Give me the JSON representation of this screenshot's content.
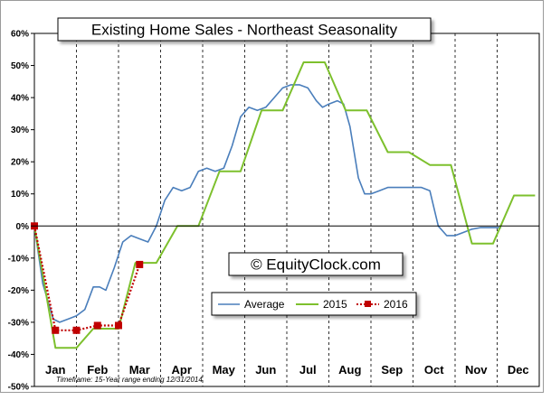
{
  "chart_data": {
    "type": "line",
    "title": "Existing Home Sales - Northeast Seasonality",
    "watermark": "© EquityClock.com",
    "footnote": "Timeframe: 15-Year range ending 12/31/2014",
    "months": [
      "Jan",
      "Feb",
      "Mar",
      "Apr",
      "May",
      "Jun",
      "Jul",
      "Aug",
      "Sep",
      "Oct",
      "Nov",
      "Dec"
    ],
    "ylim": [
      -50,
      60
    ],
    "yticks": [
      -50,
      -40,
      -30,
      -20,
      -10,
      0,
      10,
      20,
      30,
      40,
      50,
      60
    ],
    "ytick_labels": [
      "-50%",
      "-40%",
      "-30%",
      "-20%",
      "-10%",
      "0%",
      "10%",
      "20%",
      "30%",
      "40%",
      "50%",
      "60%"
    ],
    "grid": "vertical dashed month separators",
    "legend_position": "center-bottom",
    "series": [
      {
        "name": "Average",
        "color": "#4a7ebb",
        "points": [
          [
            0,
            0
          ],
          [
            0.2,
            -18
          ],
          [
            0.45,
            -29
          ],
          [
            0.6,
            -30
          ],
          [
            0.8,
            -29
          ],
          [
            1.0,
            -28
          ],
          [
            1.2,
            -26
          ],
          [
            1.4,
            -19
          ],
          [
            1.55,
            -19
          ],
          [
            1.7,
            -20
          ],
          [
            1.9,
            -13
          ],
          [
            2.1,
            -5
          ],
          [
            2.3,
            -3
          ],
          [
            2.5,
            -4
          ],
          [
            2.7,
            -5
          ],
          [
            2.9,
            0
          ],
          [
            3.1,
            8
          ],
          [
            3.3,
            12
          ],
          [
            3.5,
            11
          ],
          [
            3.7,
            12
          ],
          [
            3.9,
            17
          ],
          [
            4.1,
            18
          ],
          [
            4.3,
            17
          ],
          [
            4.5,
            18
          ],
          [
            4.7,
            25
          ],
          [
            4.9,
            34
          ],
          [
            5.1,
            37
          ],
          [
            5.3,
            36
          ],
          [
            5.5,
            37
          ],
          [
            5.7,
            40
          ],
          [
            5.9,
            43
          ],
          [
            6.1,
            44
          ],
          [
            6.3,
            44
          ],
          [
            6.5,
            43
          ],
          [
            6.7,
            39
          ],
          [
            6.85,
            37
          ],
          [
            7.0,
            38
          ],
          [
            7.2,
            39
          ],
          [
            7.35,
            38
          ],
          [
            7.5,
            31
          ],
          [
            7.7,
            15
          ],
          [
            7.85,
            10
          ],
          [
            8.0,
            10
          ],
          [
            8.2,
            11
          ],
          [
            8.4,
            12
          ],
          [
            8.7,
            12
          ],
          [
            9.0,
            12
          ],
          [
            9.2,
            12
          ],
          [
            9.4,
            11
          ],
          [
            9.6,
            0
          ],
          [
            9.8,
            -3
          ],
          [
            10.0,
            -3
          ],
          [
            10.2,
            -2
          ],
          [
            10.4,
            -1
          ],
          [
            10.6,
            -0.5
          ],
          [
            10.9,
            -0.5
          ],
          [
            11.1,
            -0.5
          ]
        ]
      },
      {
        "name": "2015",
        "color": "#7dc02d",
        "points": [
          [
            0,
            0
          ],
          [
            0.5,
            -38
          ],
          [
            1.0,
            -38
          ],
          [
            1.4,
            -32
          ],
          [
            2.0,
            -32
          ],
          [
            2.4,
            -11.5
          ],
          [
            2.9,
            -11.5
          ],
          [
            3.4,
            0
          ],
          [
            3.9,
            0
          ],
          [
            4.4,
            17
          ],
          [
            4.9,
            17
          ],
          [
            5.4,
            36
          ],
          [
            5.9,
            36
          ],
          [
            6.4,
            51
          ],
          [
            6.9,
            51
          ],
          [
            7.4,
            36
          ],
          [
            7.9,
            36
          ],
          [
            8.4,
            23
          ],
          [
            8.9,
            23
          ],
          [
            9.4,
            19
          ],
          [
            9.9,
            19
          ],
          [
            10.4,
            -5.5
          ],
          [
            10.9,
            -5.5
          ],
          [
            11.4,
            9.5
          ],
          [
            11.9,
            9.5
          ]
        ]
      },
      {
        "name": "2016",
        "color": "#c00000",
        "points": [
          [
            0,
            0
          ],
          [
            0.5,
            -32.5
          ],
          [
            1.0,
            -32.5
          ],
          [
            1.5,
            -31
          ],
          [
            2.0,
            -31
          ],
          [
            2.5,
            -12
          ]
        ]
      }
    ]
  }
}
